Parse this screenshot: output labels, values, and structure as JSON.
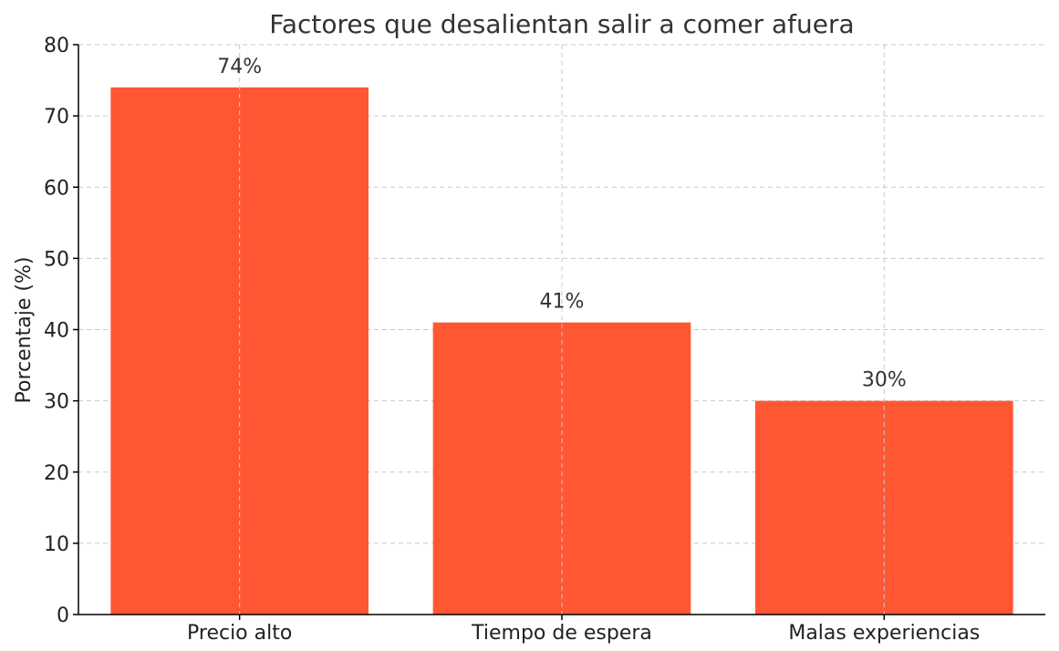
{
  "chart_data": {
    "type": "bar",
    "title": "Factores que desalientan salir a comer afuera",
    "xlabel": "",
    "ylabel": "Porcentaje (%)",
    "categories": [
      "Precio alto",
      "Tiempo de espera",
      "Malas experiencias"
    ],
    "values": [
      74,
      41,
      30
    ],
    "data_labels": [
      "74%",
      "41%",
      "30%"
    ],
    "ylim": [
      0,
      80
    ],
    "yticks": [
      0,
      10,
      20,
      30,
      40,
      50,
      60,
      70,
      80
    ],
    "grid": true,
    "bar_color": "#ff5733"
  }
}
